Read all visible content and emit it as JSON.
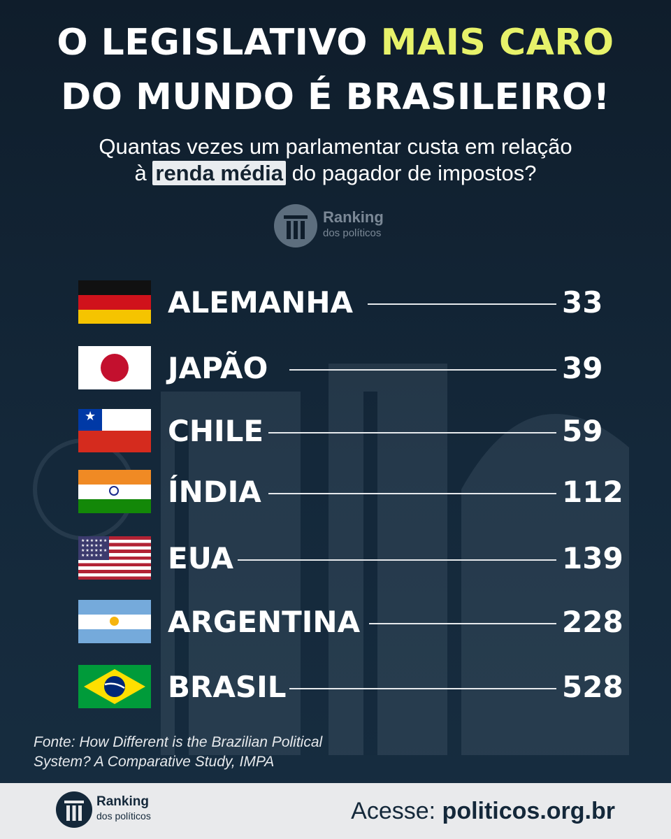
{
  "headline": {
    "line1_a": "O LEGISLATIVO ",
    "line1_b": "MAIS CARO",
    "line2": "DO MUNDO É BRASILEIRO!"
  },
  "subtitle": {
    "line1": "Quantas vezes um parlamentar custa em relação",
    "line2_a": "à ",
    "line2_highlight": "renda média",
    "line2_b": " do pagador de impostos?"
  },
  "logo": {
    "name": "Ranking",
    "sub": "dos políticos",
    "icon": "column-pillar-icon"
  },
  "ranking": [
    {
      "country": "ALEMANHA",
      "value": "33",
      "flag": "germany-flag-icon"
    },
    {
      "country": "JAPÃO",
      "value": "39",
      "flag": "japan-flag-icon"
    },
    {
      "country": "CHILE",
      "value": "59",
      "flag": "chile-flag-icon"
    },
    {
      "country": "ÍNDIA",
      "value": "112",
      "flag": "india-flag-icon"
    },
    {
      "country": "EUA",
      "value": "139",
      "flag": "usa-flag-icon"
    },
    {
      "country": "ARGENTINA",
      "value": "228",
      "flag": "argentina-flag-icon"
    },
    {
      "country": "BRASIL",
      "value": "528",
      "flag": "brazil-flag-icon"
    }
  ],
  "source": {
    "line1": "Fonte: How Different is the Brazilian Political",
    "line2": "System? A Comparative Study, IMPA"
  },
  "footer": {
    "cta_label": "Acesse: ",
    "cta_url": "politicos.org.br"
  },
  "colors": {
    "background": "#132230",
    "highlight": "#e7f26a",
    "footer_bg": "#e9eaec"
  }
}
